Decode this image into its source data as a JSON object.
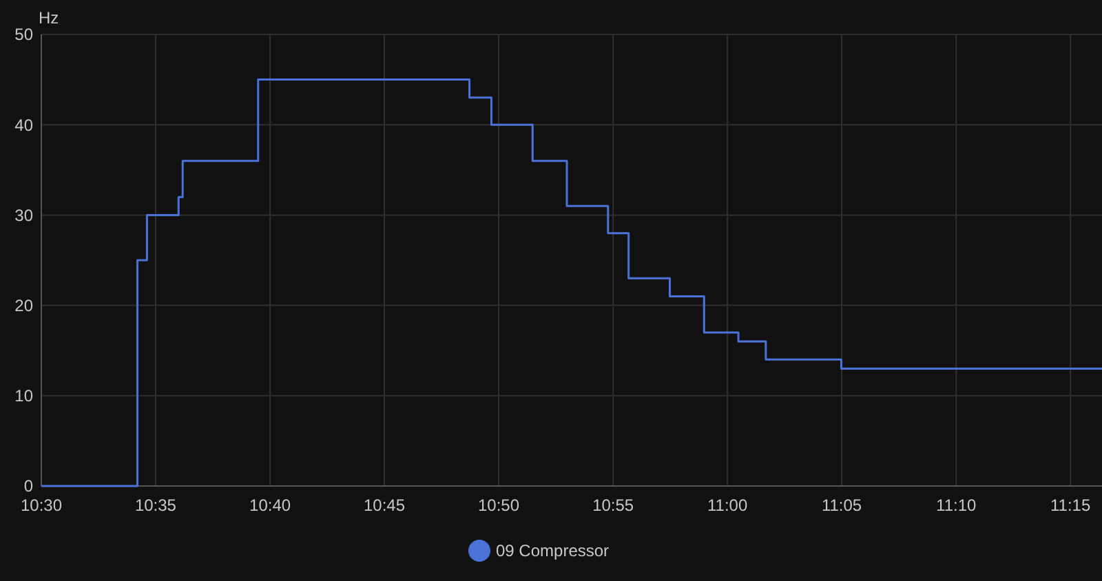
{
  "chart_data": {
    "type": "step",
    "ylabel": "Hz",
    "x": [
      10.5,
      10.57,
      10.577,
      10.6,
      10.603,
      10.658,
      10.812,
      10.828,
      10.858,
      10.883,
      10.913,
      10.928,
      10.958,
      10.983,
      11.008,
      11.028,
      11.083,
      11.273
    ],
    "series": [
      {
        "name": "09 Compressor",
        "color": "#4a72d8",
        "values": [
          0,
          25,
          30,
          32,
          36,
          45,
          43,
          40,
          36,
          31,
          28,
          23,
          21,
          17,
          16,
          14,
          13,
          13
        ]
      }
    ],
    "xlim": [
      10.5,
      11.273
    ],
    "xticks": [
      {
        "value": 10.5,
        "label": "10:30"
      },
      {
        "value": 10.5833,
        "label": "10:35"
      },
      {
        "value": 10.6667,
        "label": "10:40"
      },
      {
        "value": 10.75,
        "label": "10:45"
      },
      {
        "value": 10.8333,
        "label": "10:50"
      },
      {
        "value": 10.9167,
        "label": "10:55"
      },
      {
        "value": 11,
        "label": "11:00"
      },
      {
        "value": 11.0833,
        "label": "11:05"
      },
      {
        "value": 11.1667,
        "label": "11:10"
      },
      {
        "value": 11.25,
        "label": "11:15"
      }
    ],
    "ylim": [
      0,
      50
    ],
    "yticks": [
      0,
      10,
      20,
      30,
      40,
      50
    ],
    "grid": true,
    "legend": "bottom",
    "marker": "none",
    "line_style": "solid"
  }
}
